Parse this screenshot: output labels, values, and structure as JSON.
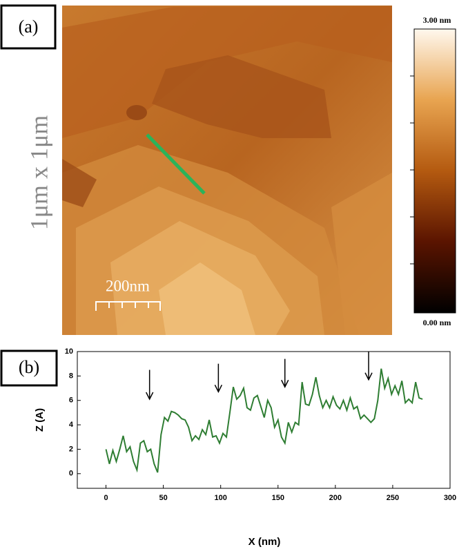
{
  "panel_a": {
    "label": "(a)",
    "side_label": "1μm x 1μm",
    "scale_bar": "200nm",
    "colorbar": {
      "max_label": "3.00 nm",
      "min_label": "0.00 nm"
    }
  },
  "chart_data": {
    "type": "line",
    "panel_label": "(b)",
    "x_label": "X (nm)",
    "y_label": "Z (A)",
    "xlim": [
      -25,
      300
    ],
    "xticks": [
      0,
      50,
      100,
      150,
      200,
      250,
      300
    ],
    "ylim": [
      -1.2,
      10
    ],
    "yticks": [
      0,
      2,
      4,
      6,
      8,
      10
    ],
    "x": [
      0,
      3,
      6,
      9,
      12,
      15,
      18,
      21,
      24,
      27,
      30,
      33,
      36,
      39,
      42,
      45,
      48,
      51,
      54,
      57,
      60,
      63,
      66,
      69,
      72,
      75,
      78,
      81,
      84,
      87,
      90,
      93,
      96,
      99,
      102,
      105,
      108,
      111,
      114,
      117,
      120,
      123,
      126,
      129,
      132,
      135,
      138,
      141,
      144,
      147,
      150,
      153,
      156,
      159,
      162,
      165,
      168,
      171,
      174,
      177,
      180,
      183,
      186,
      189,
      192,
      195,
      198,
      201,
      204,
      207,
      210,
      213,
      216,
      219,
      222,
      225,
      228,
      231,
      234,
      237,
      240,
      243,
      246,
      249,
      252,
      255,
      258,
      261,
      264,
      267,
      270,
      273,
      276
    ],
    "series": [
      {
        "color": "#2e7d32",
        "values": [
          2,
          0.8,
          1.9,
          1.0,
          2.0,
          3.1,
          1.8,
          2.2,
          1.0,
          0.3,
          2.5,
          2.7,
          1.8,
          2.0,
          0.8,
          0.1,
          3.2,
          4.6,
          4.3,
          5.1,
          5.0,
          4.8,
          4.5,
          4.4,
          3.8,
          2.7,
          3.1,
          2.8,
          3.6,
          3.2,
          4.4,
          3.0,
          3.1,
          2.5,
          3.3,
          3.0,
          5.0,
          7.1,
          6.1,
          6.4,
          7.0,
          5.4,
          5.2,
          6.2,
          6.4,
          5.5,
          4.6,
          6.0,
          5.4,
          3.8,
          4.4,
          3.0,
          2.5,
          4.2,
          3.4,
          4.2,
          4.0,
          7.5,
          5.7,
          5.6,
          6.5,
          7.9,
          6.4,
          5.4,
          6.0,
          5.4,
          6.3,
          5.6,
          5.3,
          6.0,
          5.2,
          6.2,
          5.3,
          5.5,
          4.5,
          4.8,
          4.5,
          4.2,
          4.5,
          6.0,
          8.6,
          7.0,
          7.8,
          6.5,
          7.2,
          6.5,
          7.6,
          5.8,
          6.1,
          5.8,
          7.5,
          6.2,
          6.1
        ]
      }
    ],
    "arrows": [
      {
        "x": 38,
        "y_start": 8.5,
        "y_end": 6.1
      },
      {
        "x": 98,
        "y_start": 9.0,
        "y_end": 6.7
      },
      {
        "x": 156,
        "y_start": 9.4,
        "y_end": 7.1
      },
      {
        "x": 229,
        "y_start": 10,
        "y_end": 7.7
      }
    ]
  }
}
